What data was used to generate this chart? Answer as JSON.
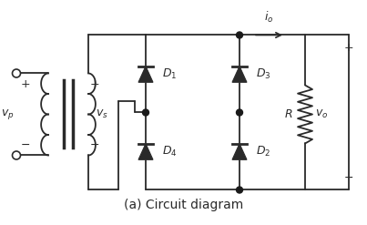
{
  "title": "(a) Circuit diagram",
  "line_color": "#2a2a2a",
  "dot_color": "#1a1a1a",
  "bg_color": "#ffffff",
  "figsize": [
    4.03,
    2.47
  ],
  "dpi": 100,
  "title_fontsize": 10,
  "label_fontsize": 9
}
